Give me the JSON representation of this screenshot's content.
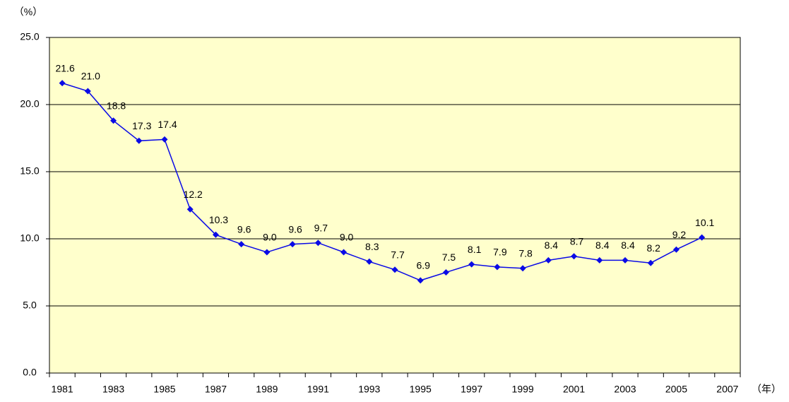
{
  "chart_data": {
    "type": "line",
    "y_label": "（%）",
    "x_label": "（年）",
    "categories": [
      "1981",
      null,
      "1983",
      null,
      "1985",
      null,
      "1987",
      null,
      "1989",
      null,
      "1991",
      null,
      "1993",
      null,
      "1995",
      null,
      "1997",
      null,
      "1999",
      null,
      "2001",
      null,
      "2003",
      null,
      "2005",
      null,
      "2007"
    ],
    "values": [
      21.6,
      21.0,
      18.8,
      17.3,
      17.4,
      12.2,
      10.3,
      9.6,
      9.0,
      9.6,
      9.7,
      9.0,
      8.3,
      7.7,
      6.9,
      7.5,
      8.1,
      7.9,
      7.8,
      8.4,
      8.7,
      8.4,
      8.4,
      8.2,
      9.2,
      10.1,
      null
    ],
    "value_labels": [
      "21.6",
      "21.0",
      "18.8",
      "17.3",
      "17.4",
      "12.2",
      "10.3",
      "9.6",
      "9.0",
      "9.6",
      "9.7",
      "9.0",
      "8.3",
      "7.7",
      "6.9",
      "7.5",
      "8.1",
      "7.9",
      "7.8",
      "8.4",
      "8.7",
      "8.4",
      "8.4",
      "8.2",
      "9.2",
      "10.1",
      null
    ],
    "color": "#0a0ae6",
    "ylim": [
      0,
      25
    ],
    "yticks": [
      {
        "value": 0,
        "label": "0.0"
      },
      {
        "value": 5,
        "label": "5.0"
      },
      {
        "value": 10,
        "label": "10.0"
      },
      {
        "value": 15,
        "label": "15.0"
      },
      {
        "value": 20,
        "label": "20.0"
      },
      {
        "value": 25,
        "label": "25.0"
      }
    ],
    "grid": true,
    "background": "#ffffcc"
  }
}
